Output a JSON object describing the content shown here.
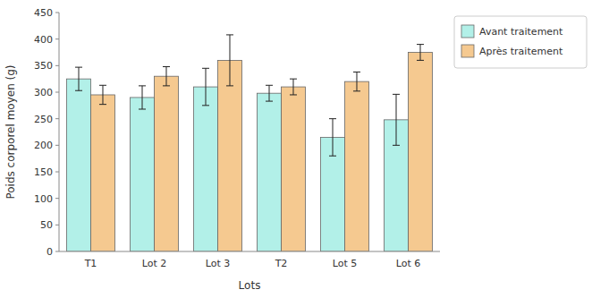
{
  "chart_data": {
    "type": "bar",
    "categories": [
      "T1",
      "Lot 2",
      "Lot 3",
      "T2",
      "Lot 5",
      "Lot 6"
    ],
    "series": [
      {
        "name": "Avant traitement",
        "color": "#b2f0e8",
        "values": [
          325,
          290,
          310,
          298,
          215,
          248
        ],
        "errors": [
          22,
          22,
          35,
          15,
          35,
          48
        ]
      },
      {
        "name": "Après traitement",
        "color": "#f5c990",
        "values": [
          295,
          330,
          360,
          310,
          320,
          375
        ],
        "errors": [
          18,
          18,
          48,
          15,
          18,
          15
        ]
      }
    ],
    "xlabel": "Lots",
    "ylabel": "Poids corporel moyen (g)",
    "ylim": [
      0,
      450
    ],
    "yticks": [
      0,
      50,
      100,
      150,
      200,
      250,
      300,
      350,
      400,
      450
    ],
    "grid": false,
    "legend": "right"
  }
}
